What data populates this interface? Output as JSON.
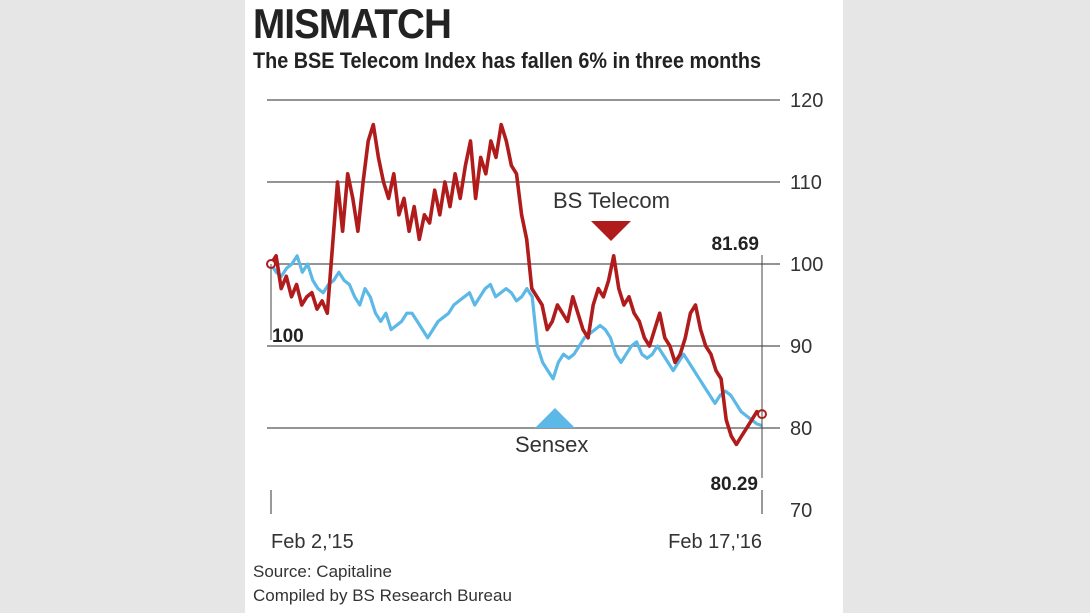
{
  "header": {
    "title": "MISMATCH",
    "subtitle": "The BSE Telecom Index has fallen 6% in three months"
  },
  "annotations": {
    "start_value": "100",
    "telecom_end_value": "81.69",
    "sensex_end_value": "80.29"
  },
  "footer": {
    "source": "Source: Capitaline",
    "compiled": "Compiled by BS Research Bureau"
  },
  "colors": {
    "telecom": "#b01c1c",
    "sensex": "#5cb8e6",
    "grid": "#555555"
  },
  "chart_data": {
    "type": "line",
    "x_tick_labels": [
      "Feb 2,'15",
      "Feb 17,'16"
    ],
    "ylim": [
      70,
      120
    ],
    "y_ticks": [
      70,
      80,
      90,
      100,
      110,
      120
    ],
    "grid": true,
    "series": [
      {
        "name": "BS Telecom",
        "marker": "down-triangle",
        "values": [
          100,
          101,
          97,
          98.5,
          96,
          97.5,
          95,
          96,
          96.5,
          94.5,
          95.5,
          94,
          102,
          110,
          104,
          111,
          108,
          104,
          110,
          115,
          117,
          113,
          110,
          108,
          111,
          106,
          108,
          104,
          107,
          103,
          106,
          105,
          109,
          106,
          110,
          107,
          111,
          108,
          112,
          115,
          108,
          113,
          111,
          115,
          113,
          117,
          115,
          112,
          111,
          106,
          103,
          97,
          96,
          95,
          92,
          93,
          95,
          94,
          93,
          96,
          94,
          92,
          91,
          95,
          97,
          96,
          98,
          101,
          97,
          95,
          96,
          94,
          93,
          91,
          90,
          92,
          94,
          91,
          90,
          88,
          89,
          91,
          94,
          95,
          92,
          90,
          89,
          87,
          86,
          81,
          79,
          78,
          79,
          80,
          81,
          82,
          81.69
        ]
      },
      {
        "name": "Sensex",
        "marker": "up-triangle",
        "values": [
          100,
          99,
          98.5,
          99.5,
          100,
          101,
          99,
          100,
          98,
          97,
          96.5,
          97.5,
          98,
          99,
          98,
          97.5,
          96,
          95,
          97,
          96,
          94,
          93,
          94,
          92,
          92.5,
          93,
          94,
          94,
          93,
          92,
          91,
          92,
          93,
          93.5,
          94,
          95,
          95.5,
          96,
          96.5,
          95,
          96,
          97,
          97.5,
          96,
          96.5,
          97,
          96.5,
          95.5,
          96,
          97,
          96,
          90,
          88,
          87,
          86,
          88,
          89,
          88.5,
          89,
          90,
          91,
          91.5,
          92,
          92.5,
          92,
          91,
          89,
          88,
          89,
          90,
          90.5,
          89,
          88.5,
          89,
          90,
          89,
          88,
          87,
          88,
          89,
          88,
          87,
          86,
          85,
          84,
          83,
          84,
          84.5,
          84,
          83,
          82,
          81.5,
          81,
          80.5,
          80.29
        ]
      }
    ]
  }
}
